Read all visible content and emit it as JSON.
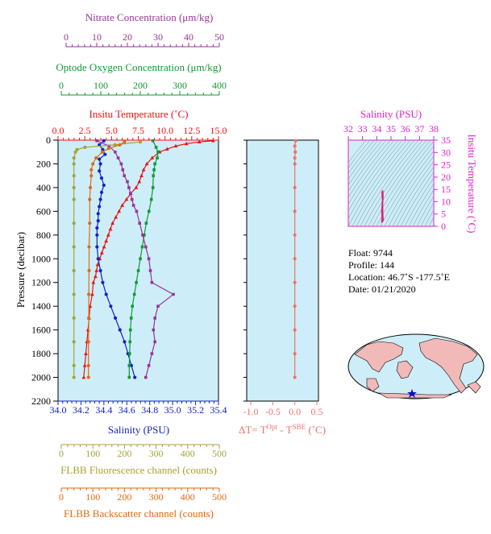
{
  "colors": {
    "nitrate": "#993399",
    "oxygen": "#119933",
    "temperature": "#ee1111",
    "salinity": "#1122cc",
    "fluorescence": "#aaa033",
    "backscatter": "#e06a11",
    "delta_t": "#f07070",
    "ts_axis": "#dd22cc",
    "plot_bg": "#cdeef8"
  },
  "axes": {
    "nitrate": {
      "label": "Nitrate Concentration (μm/kg)",
      "ticks": [
        "0",
        "10",
        "20",
        "30",
        "40",
        "50"
      ]
    },
    "oxygen": {
      "label": "Optode Oxygen Concentration (μm/kg)",
      "ticks": [
        "0",
        "100",
        "200",
        "300",
        "400"
      ]
    },
    "temperature": {
      "label": "Insitu Temperature (˚C)",
      "ticks": [
        "0.0",
        "2.5",
        "5.0",
        "7.5",
        "10.0",
        "12.5",
        "15.0"
      ]
    },
    "pressure": {
      "label": "Pressure (decibar)",
      "ticks": [
        "0",
        "200",
        "400",
        "600",
        "800",
        "1000",
        "1200",
        "1400",
        "1600",
        "1800",
        "2000",
        "2200"
      ]
    },
    "salinity": {
      "label": "Salinity (PSU)",
      "ticks": [
        "34.0",
        "34.2",
        "34.4",
        "34.6",
        "34.8",
        "35.0",
        "35.2",
        "35.4"
      ]
    },
    "fluorescence": {
      "label": "FLBB Fluorescence channel (counts)",
      "ticks": [
        "0",
        "100",
        "200",
        "300",
        "400",
        "500"
      ]
    },
    "backscatter": {
      "label": "FLBB Backscatter channel (counts)",
      "ticks": [
        "0",
        "100",
        "200",
        "300",
        "400",
        "500"
      ]
    },
    "delta_t": {
      "label_main": "ΔT= T",
      "sup1": "Opt",
      "label_mid": " - T",
      "sup2": "SBE",
      "label_end": " (˚C)",
      "ticks": [
        "-1.0",
        "-0.5",
        "0.0",
        "0.5"
      ]
    },
    "ts_salinity": {
      "label": "Salinity (PSU)",
      "ticks": [
        "32",
        "33",
        "34",
        "35",
        "36",
        "37",
        "38"
      ]
    },
    "ts_temperature": {
      "label": "Insitu Temperature (˚C)",
      "ticks": [
        "0",
        "5",
        "10",
        "15",
        "20",
        "25",
        "30",
        "35"
      ]
    }
  },
  "info": {
    "float": "Float:  9744",
    "profile": "Profile:  144",
    "location": "Location:  46.7˚S  -177.5˚E",
    "date": "Date:  01/21/2020"
  },
  "chart_data": {
    "type": "line",
    "y_axis": "pressure",
    "ylim": [
      2200,
      0
    ],
    "series": [
      {
        "name": "Insitu Temperature",
        "xlim": [
          0,
          15
        ],
        "points": [
          [
            14.5,
            5
          ],
          [
            13.2,
            15
          ],
          [
            12,
            30
          ],
          [
            11,
            50
          ],
          [
            10.2,
            75
          ],
          [
            9.5,
            100
          ],
          [
            8.8,
            150
          ],
          [
            8.3,
            200
          ],
          [
            8.0,
            250
          ],
          [
            7.8,
            300
          ],
          [
            7.6,
            350
          ],
          [
            7.3,
            400
          ],
          [
            6.8,
            450
          ],
          [
            6.4,
            500
          ],
          [
            6.0,
            550
          ],
          [
            5.7,
            600
          ],
          [
            5.4,
            650
          ],
          [
            5.1,
            700
          ],
          [
            4.9,
            750
          ],
          [
            4.7,
            800
          ],
          [
            4.5,
            850
          ],
          [
            4.3,
            900
          ],
          [
            4.1,
            950
          ],
          [
            3.9,
            1000
          ],
          [
            3.7,
            1050
          ],
          [
            3.6,
            1100
          ],
          [
            3.5,
            1150
          ],
          [
            3.3,
            1200
          ],
          [
            3.2,
            1300
          ],
          [
            3.0,
            1400
          ],
          [
            2.9,
            1500
          ],
          [
            2.8,
            1600
          ],
          [
            2.7,
            1700
          ],
          [
            2.6,
            1800
          ],
          [
            2.5,
            1900
          ],
          [
            2.4,
            2000
          ]
        ]
      },
      {
        "name": "Salinity",
        "xlim": [
          34.0,
          35.4
        ],
        "points": [
          [
            34.4,
            5
          ],
          [
            34.36,
            40
          ],
          [
            34.39,
            80
          ],
          [
            34.41,
            120
          ],
          [
            34.36,
            160
          ],
          [
            34.37,
            200
          ],
          [
            34.36,
            260
          ],
          [
            34.38,
            320
          ],
          [
            34.4,
            380
          ],
          [
            34.38,
            440
          ],
          [
            34.37,
            500
          ],
          [
            34.36,
            560
          ],
          [
            34.35,
            620
          ],
          [
            34.35,
            680
          ],
          [
            34.34,
            740
          ],
          [
            34.34,
            800
          ],
          [
            34.34,
            900
          ],
          [
            34.35,
            1000
          ],
          [
            34.37,
            1100
          ],
          [
            34.39,
            1200
          ],
          [
            34.42,
            1300
          ],
          [
            34.46,
            1400
          ],
          [
            34.5,
            1500
          ],
          [
            34.54,
            1600
          ],
          [
            34.58,
            1700
          ],
          [
            34.61,
            1800
          ],
          [
            34.64,
            1900
          ],
          [
            34.67,
            2000
          ]
        ]
      },
      {
        "name": "Oxygen",
        "xlim": [
          0,
          400
        ],
        "points": [
          [
            232,
            5
          ],
          [
            240,
            60
          ],
          [
            245,
            100
          ],
          [
            243,
            150
          ],
          [
            237,
            200
          ],
          [
            235,
            250
          ],
          [
            233,
            300
          ],
          [
            232,
            400
          ],
          [
            228,
            500
          ],
          [
            222,
            600
          ],
          [
            215,
            700
          ],
          [
            210,
            800
          ],
          [
            205,
            900
          ],
          [
            200,
            1000
          ],
          [
            195,
            1100
          ],
          [
            190,
            1200
          ],
          [
            185,
            1300
          ],
          [
            180,
            1400
          ],
          [
            177,
            1500
          ],
          [
            175,
            1600
          ],
          [
            174,
            1700
          ],
          [
            173,
            1800
          ],
          [
            172,
            1900
          ],
          [
            172,
            2000
          ]
        ]
      },
      {
        "name": "Nitrate",
        "xlim": [
          0,
          50
        ],
        "points": [
          [
            10,
            5
          ],
          [
            14,
            50
          ],
          [
            16,
            100
          ],
          [
            17,
            150
          ],
          [
            18,
            200
          ],
          [
            18.5,
            250
          ],
          [
            19,
            300
          ],
          [
            20,
            350
          ],
          [
            20.5,
            400
          ],
          [
            21,
            450
          ],
          [
            21.5,
            500
          ],
          [
            22,
            550
          ],
          [
            23,
            600
          ],
          [
            24,
            700
          ],
          [
            25,
            800
          ],
          [
            26,
            900
          ],
          [
            27,
            1000
          ],
          [
            27.5,
            1100
          ],
          [
            28,
            1200
          ],
          [
            35,
            1300
          ],
          [
            30,
            1400
          ],
          [
            29,
            1500
          ],
          [
            28.5,
            1600
          ],
          [
            29,
            1700
          ],
          [
            28,
            1800
          ],
          [
            27,
            1900
          ],
          [
            26,
            2000
          ]
        ]
      },
      {
        "name": "FLBB Fluorescence",
        "xlim": [
          0,
          500
        ],
        "points": [
          [
            250,
            15
          ],
          [
            170,
            40
          ],
          [
            75,
            60
          ],
          [
            50,
            80
          ],
          [
            45,
            100
          ],
          [
            40,
            150
          ],
          [
            40,
            200
          ],
          [
            40,
            300
          ],
          [
            40,
            400
          ],
          [
            40,
            500
          ],
          [
            40,
            700
          ],
          [
            40,
            900
          ],
          [
            40,
            1100
          ],
          [
            40,
            1300
          ],
          [
            40,
            1500
          ],
          [
            40,
            1700
          ],
          [
            40,
            1900
          ],
          [
            40,
            2000
          ]
        ]
      },
      {
        "name": "FLBB Backscatter",
        "xlim": [
          0,
          500
        ],
        "points": [
          [
            200,
            15
          ],
          [
            185,
            40
          ],
          [
            150,
            70
          ],
          [
            130,
            100
          ],
          [
            110,
            150
          ],
          [
            100,
            200
          ],
          [
            95,
            250
          ],
          [
            95,
            300
          ],
          [
            92,
            400
          ],
          [
            90,
            500
          ],
          [
            90,
            700
          ],
          [
            88,
            900
          ],
          [
            88,
            1100
          ],
          [
            87,
            1300
          ],
          [
            87,
            1500
          ],
          [
            86,
            1700
          ],
          [
            86,
            1900
          ],
          [
            86,
            2000
          ]
        ]
      },
      {
        "name": "ΔT",
        "xlim": [
          -1.25,
          0.6
        ],
        "points": [
          [
            0.02,
            5
          ],
          [
            0.0,
            50
          ],
          [
            0.01,
            100
          ],
          [
            0.0,
            150
          ],
          [
            0.0,
            200
          ],
          [
            0.0,
            400
          ],
          [
            0.0,
            600
          ],
          [
            0.0,
            800
          ],
          [
            0.0,
            1000
          ],
          [
            0.0,
            1200
          ],
          [
            0.0,
            1400
          ],
          [
            0.0,
            1600
          ],
          [
            0.0,
            1800
          ],
          [
            0.0,
            2000
          ]
        ]
      }
    ],
    "ts_diagram": {
      "xlim": [
        32,
        38
      ],
      "ylim": [
        0,
        35
      ],
      "points": [
        [
          34.35,
          1.8
        ],
        [
          34.37,
          3.2
        ],
        [
          34.36,
          4.7
        ],
        [
          34.35,
          6.5
        ],
        [
          34.37,
          7.9
        ],
        [
          34.4,
          10.5
        ],
        [
          34.38,
          12.4
        ],
        [
          34.36,
          13.6
        ],
        [
          34.42,
          14.6
        ],
        [
          34.44,
          12.0
        ],
        [
          34.41,
          9.0
        ],
        [
          34.42,
          5.0
        ],
        [
          34.45,
          2.5
        ],
        [
          34.4,
          2.0
        ]
      ]
    }
  }
}
